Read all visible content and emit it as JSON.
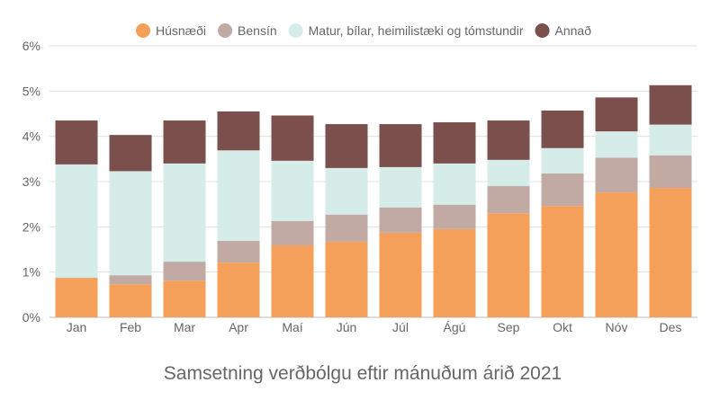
{
  "chart_data": {
    "type": "bar",
    "stacked": true,
    "title": "Samsetning verðbólgu eftir mánuðum árið 2021",
    "xlabel": "",
    "ylabel": "",
    "ylim": [
      0,
      6
    ],
    "yticks": [
      "0%",
      "1%",
      "2%",
      "3%",
      "4%",
      "5%",
      "6%"
    ],
    "grid": true,
    "legend": "top",
    "categories": [
      "Jan",
      "Feb",
      "Mar",
      "Apr",
      "Maí",
      "Jún",
      "Júl",
      "Ágú",
      "Sep",
      "Okt",
      "Nóv",
      "Des"
    ],
    "series": [
      {
        "name": "Húsnæði",
        "color": "#f5a05a",
        "values": [
          0.87,
          0.73,
          0.81,
          1.21,
          1.59,
          1.67,
          1.87,
          1.95,
          2.3,
          2.46,
          2.76,
          2.86
        ]
      },
      {
        "name": "Bensín",
        "color": "#c0aaa3",
        "values": [
          0.01,
          0.2,
          0.42,
          0.48,
          0.54,
          0.6,
          0.56,
          0.54,
          0.6,
          0.72,
          0.77,
          0.72
        ]
      },
      {
        "name": "Matur, bílar, heimilistæki og tómstundir",
        "color": "#d5ece8",
        "values": [
          2.5,
          2.3,
          2.17,
          2.0,
          1.33,
          1.03,
          0.89,
          0.91,
          0.58,
          0.56,
          0.58,
          0.68
        ]
      },
      {
        "name": "Annað",
        "color": "#7b4f4c",
        "values": [
          0.97,
          0.8,
          0.95,
          0.86,
          1.0,
          0.97,
          0.95,
          0.91,
          0.87,
          0.83,
          0.75,
          0.87
        ]
      }
    ]
  }
}
